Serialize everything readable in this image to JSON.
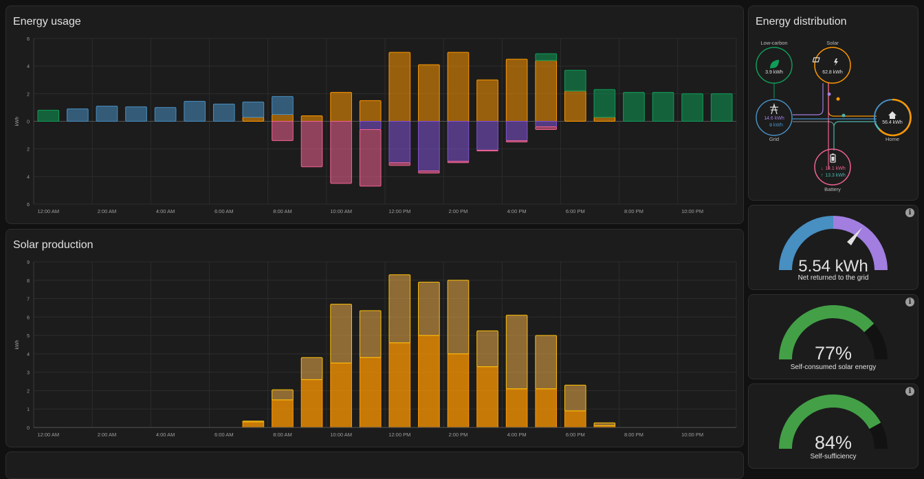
{
  "colors": {
    "grid_import": "#488fc2",
    "grid_return": "#8353d4",
    "solar": "#ff9800",
    "battery": "#f06292",
    "low_carbon": "#0f9d58",
    "battery_in": "#f06292",
    "non_fossil": "#0f9d58",
    "gauge_return": "#a17ee0",
    "gauge_green": "#43a047"
  },
  "energy_usage": {
    "title": "Energy usage",
    "ylabel": "kWh"
  },
  "solar_production": {
    "title": "Solar production",
    "ylabel": "kWh"
  },
  "distribution": {
    "title": "Energy distribution",
    "low_carbon": {
      "label": "Low-carbon",
      "value": "3.9 kWh",
      "icon": "leaf-icon"
    },
    "solar": {
      "label": "Solar",
      "value": "62.8 kWh",
      "icon": "solar-panel-icon"
    },
    "grid": {
      "label": "Grid",
      "import": "14.6 kWh",
      "export": "9 kWh",
      "icon": "transmission-tower-icon"
    },
    "home": {
      "label": "Home",
      "value": "56.4 kWh",
      "icon": "home-icon"
    },
    "battery": {
      "label": "Battery",
      "in": "14.1 kWh",
      "out": "13.3 kWh",
      "icon": "battery-icon"
    }
  },
  "gauges": [
    {
      "value": "5.54 kWh",
      "label": "Net returned to the grid",
      "info": "i",
      "fraction": 0.72
    },
    {
      "value": "77%",
      "label": "Self-consumed solar energy",
      "info": "i",
      "fraction": 0.77
    },
    {
      "value": "84%",
      "label": "Self-sufficiency",
      "info": "i",
      "fraction": 0.84
    }
  ],
  "chart_data": [
    {
      "type": "bar",
      "title": "Energy usage",
      "ylabel": "kWh",
      "ylim": [
        -6,
        6
      ],
      "y_ticks": [
        "6",
        "4",
        "2",
        "0",
        "2",
        "4",
        "6"
      ],
      "x_ticks": [
        "12:00 AM",
        "2:00 AM",
        "4:00 AM",
        "6:00 AM",
        "8:00 AM",
        "10:00 AM",
        "12:00 PM",
        "2:00 PM",
        "4:00 PM",
        "6:00 PM",
        "8:00 PM",
        "10:00 PM"
      ],
      "hours": [
        0,
        1,
        2,
        3,
        4,
        5,
        6,
        7,
        8,
        9,
        10,
        11,
        12,
        13,
        14,
        15,
        16,
        17,
        18,
        19,
        20,
        21,
        22,
        23
      ],
      "series": [
        {
          "key": "solar",
          "values": [
            0,
            0,
            0,
            0,
            0,
            0,
            0,
            0.3,
            0.5,
            0.4,
            2.1,
            1.5,
            5.0,
            4.1,
            5.0,
            3.0,
            4.5,
            4.4,
            2.2,
            0.3,
            0,
            0,
            0,
            0
          ]
        },
        {
          "key": "battery_out",
          "values": [
            0,
            0,
            0,
            0,
            0,
            0,
            0,
            0,
            0,
            0,
            0,
            0,
            0,
            0,
            0,
            0,
            0,
            0,
            0,
            0,
            0,
            0,
            0,
            0
          ]
        },
        {
          "key": "grid_import",
          "values": [
            0,
            0.9,
            1.1,
            1.05,
            1.0,
            1.45,
            1.25,
            1.1,
            1.3,
            0,
            0,
            0,
            0,
            0,
            0,
            0,
            0,
            0,
            0,
            0,
            0,
            0,
            0,
            0
          ]
        },
        {
          "key": "low_carbon",
          "values": [
            0.8,
            0,
            0,
            0,
            0,
            0,
            0,
            0,
            0,
            0,
            0,
            0,
            0,
            0,
            0,
            0,
            0,
            0.5,
            1.5,
            2.0,
            2.1,
            2.1,
            2.0,
            2.0
          ]
        },
        {
          "key": "grid_return",
          "values": [
            0,
            0,
            0,
            0,
            0,
            0,
            0,
            0,
            0,
            0,
            0,
            -0.6,
            -3.0,
            -3.6,
            -2.9,
            -2.1,
            -1.4,
            -0.4,
            0,
            0,
            0,
            0,
            0,
            0
          ]
        },
        {
          "key": "battery_in",
          "values": [
            0,
            0,
            0,
            0,
            0,
            0,
            0,
            0,
            -1.4,
            -3.3,
            -4.5,
            -4.1,
            -0.2,
            -0.15,
            -0.1,
            -0.05,
            -0.1,
            -0.2,
            0,
            0,
            0,
            0,
            0,
            0
          ]
        }
      ]
    },
    {
      "type": "bar",
      "title": "Solar production",
      "ylabel": "kWh",
      "ylim": [
        0,
        9
      ],
      "y_ticks": [
        "9",
        "8",
        "7",
        "6",
        "5",
        "4",
        "3",
        "2",
        "1",
        "0"
      ],
      "x_ticks": [
        "12:00 AM",
        "2:00 AM",
        "4:00 AM",
        "6:00 AM",
        "8:00 AM",
        "10:00 AM",
        "12:00 PM",
        "2:00 PM",
        "4:00 PM",
        "6:00 PM",
        "8:00 PM",
        "10:00 PM"
      ],
      "hours": [
        0,
        1,
        2,
        3,
        4,
        5,
        6,
        7,
        8,
        9,
        10,
        11,
        12,
        13,
        14,
        15,
        16,
        17,
        18,
        19,
        20,
        21,
        22,
        23
      ],
      "series": [
        {
          "key": "actual",
          "values": [
            0,
            0,
            0,
            0,
            0,
            0,
            0,
            0.3,
            1.5,
            2.6,
            3.5,
            3.8,
            4.6,
            5.0,
            4.0,
            3.3,
            2.1,
            2.1,
            0.9,
            0.1,
            0,
            0,
            0,
            0
          ]
        },
        {
          "key": "forecast_extra",
          "values": [
            0,
            0,
            0,
            0,
            0,
            0,
            0,
            0.05,
            0.55,
            1.2,
            3.2,
            2.55,
            3.7,
            2.9,
            4.0,
            1.95,
            4.0,
            2.9,
            1.4,
            0.15,
            0,
            0,
            0,
            0
          ]
        }
      ]
    }
  ]
}
